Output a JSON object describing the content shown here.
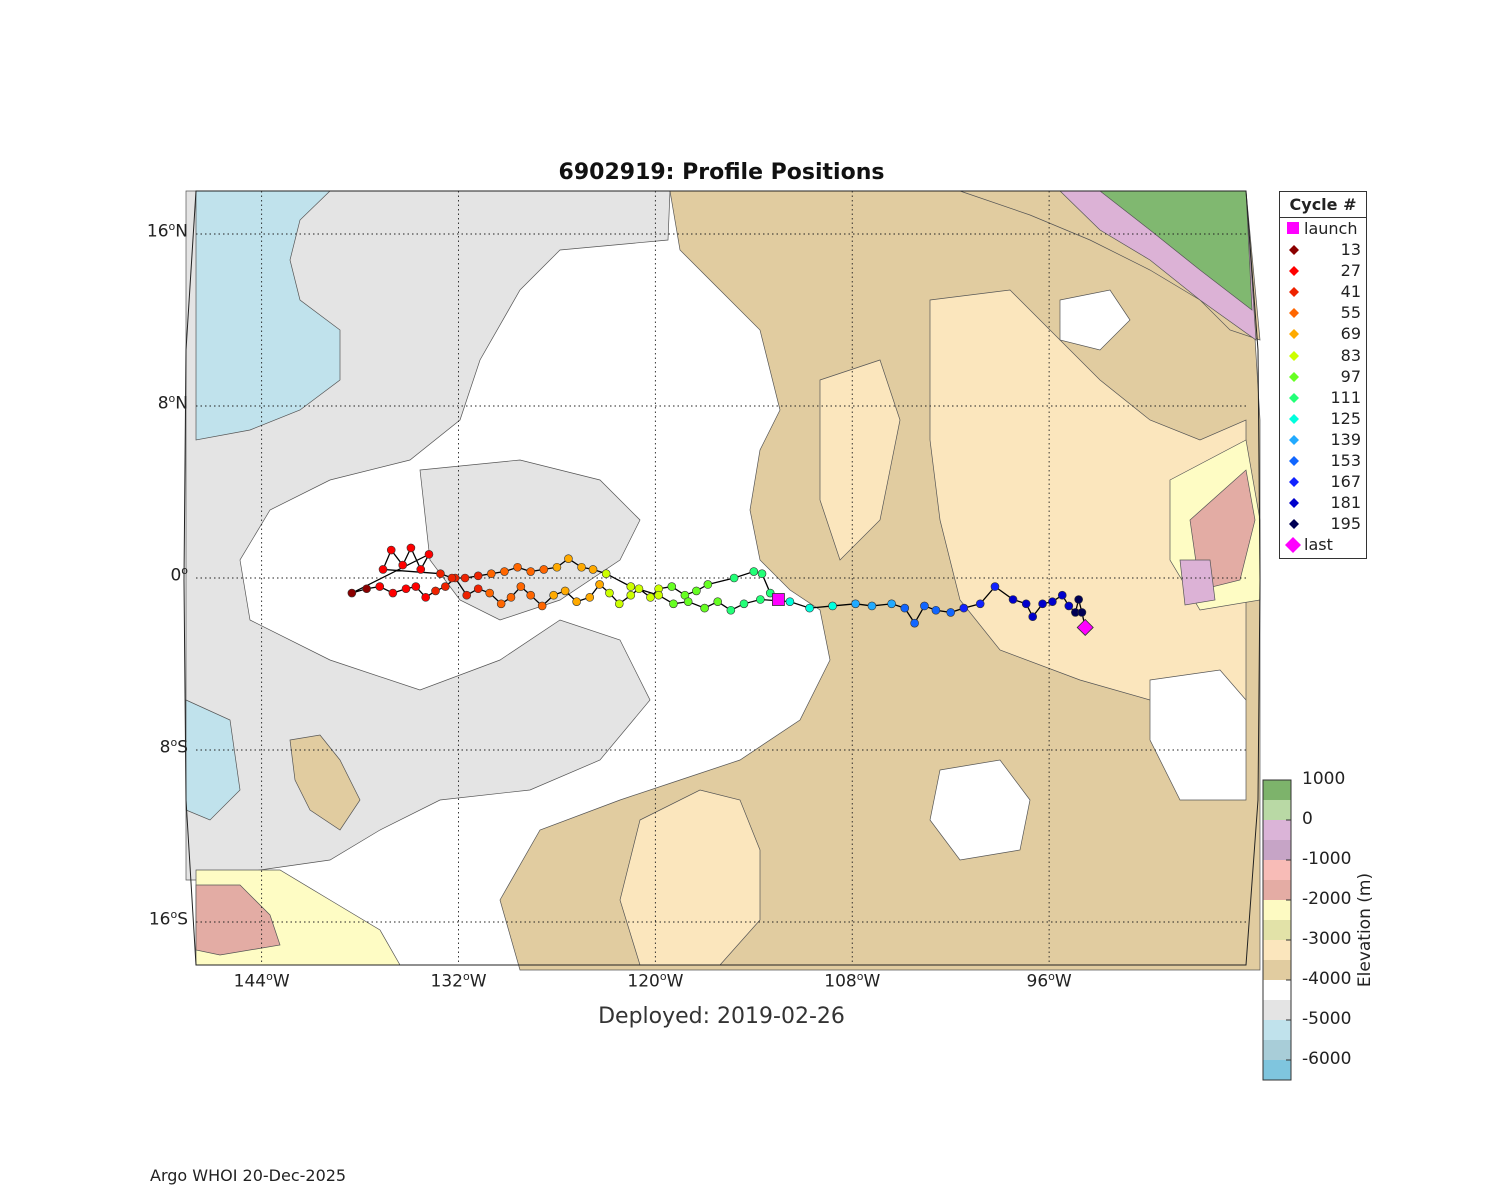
{
  "title": "6902919: Profile Positions",
  "subtitle": "Deployed: 2019-02-26",
  "footer": "Argo WHOI 20-Dec-2025",
  "map": {
    "lon_range_deg": [
      -148,
      -84
    ],
    "lat_range_deg": [
      -18,
      18
    ],
    "lat_ticks": [
      {
        "label": "16",
        "hemi": "N"
      },
      {
        "label": "8",
        "hemi": "N"
      },
      {
        "label": "0",
        "hemi": ""
      },
      {
        "label": "8",
        "hemi": "S"
      },
      {
        "label": "16",
        "hemi": "S"
      }
    ],
    "lon_ticks": [
      {
        "label": "144",
        "hemi": "W"
      },
      {
        "label": "132",
        "hemi": "W"
      },
      {
        "label": "120",
        "hemi": "W"
      },
      {
        "label": "108",
        "hemi": "W"
      },
      {
        "label": "96",
        "hemi": "W"
      }
    ],
    "grid": true,
    "colors": {
      "ocean_shallow": "#fbe6bd",
      "ocean_mid": "#e1cca0",
      "ocean_4000": "#ffffff",
      "ocean_5000": "#e4e4e4",
      "ocean_6000": "#c0e2ec",
      "land_low": "#dcb2d6",
      "land_high": "#80b870",
      "ridge": "#e3aca4",
      "yellow_band": "#fefcc4"
    }
  },
  "legend": {
    "title": "Cycle #",
    "launch_label": "launch",
    "last_label": "last",
    "launch_color": "#ff00ff",
    "last_color": "#ff00ff",
    "cycles": [
      {
        "label": "13",
        "color": "#8b0000"
      },
      {
        "label": "27",
        "color": "#ff0000"
      },
      {
        "label": "41",
        "color": "#ee2200"
      },
      {
        "label": "55",
        "color": "#ff6600"
      },
      {
        "label": "69",
        "color": "#ffaa00"
      },
      {
        "label": "83",
        "color": "#ccff00"
      },
      {
        "label": "97",
        "color": "#66ff22"
      },
      {
        "label": "111",
        "color": "#22ff77"
      },
      {
        "label": "125",
        "color": "#00ffdd"
      },
      {
        "label": "139",
        "color": "#22aaff"
      },
      {
        "label": "153",
        "color": "#1166ff"
      },
      {
        "label": "167",
        "color": "#1122ff"
      },
      {
        "label": "181",
        "color": "#0000cc"
      },
      {
        "label": "195",
        "color": "#000055"
      }
    ]
  },
  "colorbar": {
    "label": "Elevation (m)",
    "ticks": [
      "1000",
      "0",
      "-1000",
      "-2000",
      "-3000",
      "-4000",
      "-5000",
      "-6000"
    ],
    "colors_top_to_bottom": [
      "#7db36b",
      "#b9d9a5",
      "#dbb4d8",
      "#c6a4c6",
      "#f8bcb7",
      "#e4aca4",
      "#fdfac2",
      "#e2e2a8",
      "#fbe6bd",
      "#e1cca0",
      "#ffffff",
      "#e4e4e4",
      "#c0e2ec",
      "#a8cdd8",
      "#7fc5de"
    ]
  },
  "chart_data": {
    "type": "scatter",
    "title": "6902919: Profile Positions",
    "xlabel": "",
    "ylabel": "",
    "xlim": [
      -148,
      -84
    ],
    "ylim": [
      -18,
      18
    ],
    "launch": {
      "lon": -112.5,
      "lat": -1.0
    },
    "last": {
      "lon": -93.8,
      "lat": -2.3
    },
    "track": [
      [
        -112.5,
        -1.0
      ],
      [
        -113.0,
        -0.7
      ],
      [
        -113.5,
        0.2
      ],
      [
        -114.0,
        0.3
      ],
      [
        -115.2,
        0.0
      ],
      [
        -116.8,
        -0.3
      ],
      [
        -117.5,
        -0.6
      ],
      [
        -118.2,
        -0.8
      ],
      [
        -119.0,
        -0.4
      ],
      [
        -119.8,
        -0.5
      ],
      [
        -120.3,
        -0.9
      ],
      [
        -121.0,
        -0.5
      ],
      [
        -121.5,
        -0.8
      ],
      [
        -122.2,
        -1.2
      ],
      [
        -122.8,
        -0.7
      ],
      [
        -123.4,
        -0.3
      ],
      [
        -124.0,
        -0.9
      ],
      [
        -124.8,
        -1.1
      ],
      [
        -125.5,
        -0.6
      ],
      [
        -126.2,
        -0.8
      ],
      [
        -126.9,
        -1.3
      ],
      [
        -127.6,
        -0.8
      ],
      [
        -128.2,
        -0.4
      ],
      [
        -128.8,
        -0.9
      ],
      [
        -129.4,
        -1.2
      ],
      [
        -130.1,
        -0.7
      ],
      [
        -130.8,
        -0.5
      ],
      [
        -131.5,
        -0.8
      ],
      [
        -132.2,
        0.0
      ],
      [
        -132.8,
        -0.4
      ],
      [
        -133.4,
        -0.6
      ],
      [
        -134.0,
        -0.9
      ],
      [
        -134.6,
        -0.4
      ],
      [
        -135.2,
        -0.5
      ],
      [
        -136.0,
        -0.7
      ],
      [
        -136.8,
        -0.4
      ],
      [
        -137.6,
        -0.5
      ],
      [
        -138.5,
        -0.7
      ],
      [
        -133.8,
        1.1
      ],
      [
        -134.3,
        0.4
      ],
      [
        -134.9,
        1.4
      ],
      [
        -135.4,
        0.6
      ],
      [
        -136.1,
        1.3
      ],
      [
        -136.6,
        0.4
      ],
      [
        -133.1,
        0.2
      ],
      [
        -132.4,
        0.0
      ],
      [
        -131.6,
        0.0
      ],
      [
        -130.8,
        0.1
      ],
      [
        -130.0,
        0.2
      ],
      [
        -129.2,
        0.3
      ],
      [
        -128.4,
        0.5
      ],
      [
        -127.6,
        0.3
      ],
      [
        -126.8,
        0.4
      ],
      [
        -126.0,
        0.5
      ],
      [
        -125.3,
        0.9
      ],
      [
        -124.5,
        0.5
      ],
      [
        -123.8,
        0.4
      ],
      [
        -123.0,
        0.2
      ],
      [
        -121.5,
        -0.4
      ],
      [
        -119.8,
        -0.8
      ],
      [
        -118.9,
        -1.2
      ],
      [
        -118.0,
        -1.1
      ],
      [
        -117.0,
        -1.4
      ],
      [
        -116.2,
        -1.1
      ],
      [
        -115.4,
        -1.5
      ],
      [
        -114.6,
        -1.2
      ],
      [
        -113.6,
        -1.0
      ],
      [
        -111.8,
        -1.1
      ],
      [
        -110.6,
        -1.4
      ],
      [
        -109.2,
        -1.3
      ],
      [
        -107.8,
        -1.2
      ],
      [
        -106.8,
        -1.3
      ],
      [
        -105.6,
        -1.2
      ],
      [
        -104.8,
        -1.4
      ],
      [
        -104.2,
        -2.1
      ],
      [
        -103.6,
        -1.3
      ],
      [
        -102.9,
        -1.5
      ],
      [
        -102.0,
        -1.6
      ],
      [
        -101.2,
        -1.4
      ],
      [
        -100.2,
        -1.2
      ],
      [
        -99.3,
        -0.4
      ],
      [
        -98.2,
        -1.0
      ],
      [
        -97.4,
        -1.2
      ],
      [
        -97.0,
        -1.8
      ],
      [
        -96.4,
        -1.2
      ],
      [
        -95.8,
        -1.1
      ],
      [
        -95.2,
        -0.8
      ],
      [
        -94.8,
        -1.3
      ],
      [
        -94.4,
        -1.6
      ],
      [
        -94.2,
        -1.0
      ],
      [
        -94.0,
        -1.6
      ],
      [
        -93.8,
        -2.3
      ]
    ]
  }
}
